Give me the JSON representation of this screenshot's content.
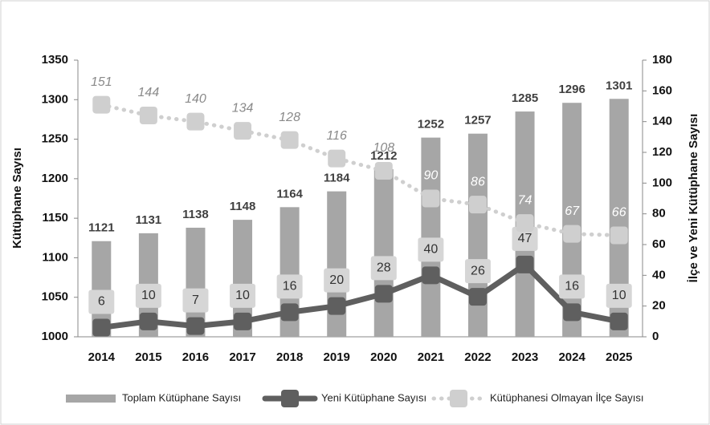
{
  "chart_data": {
    "type": "bar",
    "categories": [
      "2014",
      "2015",
      "2016",
      "2017",
      "2018",
      "2019",
      "2020",
      "2021",
      "2022",
      "2023",
      "2024",
      "2025"
    ],
    "ylabel": "Kütüphane Sayısı",
    "y2label": "İlçe ve Yeni Kütüphane Sayısı",
    "ylim": [
      1000,
      1350
    ],
    "yticks": [
      1000,
      1050,
      1100,
      1150,
      1200,
      1250,
      1300,
      1350
    ],
    "y2lim": [
      0,
      180
    ],
    "y2ticks": [
      0,
      20,
      40,
      60,
      80,
      100,
      120,
      140,
      160,
      180
    ],
    "legend": "bottom",
    "series": [
      {
        "name": "Toplam Kütüphane Sayısı",
        "type": "bar",
        "color": "#a6a6a6",
        "values": [
          1121,
          1131,
          1138,
          1148,
          1164,
          1184,
          1212,
          1252,
          1257,
          1285,
          1296,
          1301
        ]
      },
      {
        "name": "Yeni Kütüphane Sayısı",
        "type": "line",
        "axis": "y2",
        "color": "#5f5f5f",
        "values": [
          6,
          10,
          7,
          10,
          16,
          20,
          28,
          40,
          26,
          47,
          16,
          10
        ]
      },
      {
        "name": "Kütüphanesi Olmayan İlçe Sayısı",
        "type": "line",
        "axis": "y2",
        "style": "dotted",
        "color": "#cfcfcf",
        "values": [
          151,
          144,
          140,
          134,
          128,
          116,
          108,
          90,
          86,
          74,
          67,
          66
        ]
      }
    ]
  }
}
